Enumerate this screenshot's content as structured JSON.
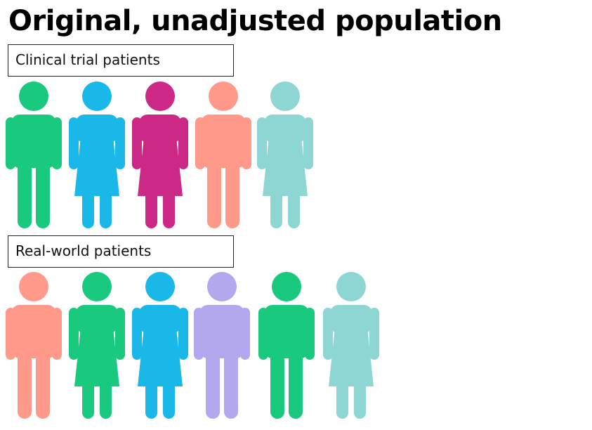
{
  "title": "Original, unadjusted population",
  "groups": [
    {
      "label": "Clinical trial patients",
      "people": [
        {
          "figure": "male-icon",
          "color": "#19C97D"
        },
        {
          "figure": "female-icon",
          "color": "#1AB8E8"
        },
        {
          "figure": "female-icon",
          "color": "#CC2987"
        },
        {
          "figure": "male-icon",
          "color": "#FF9A8B"
        },
        {
          "figure": "female-icon",
          "color": "#8DD6D4"
        }
      ]
    },
    {
      "label": "Real-world patients",
      "people": [
        {
          "figure": "male-icon",
          "color": "#FF9A8B"
        },
        {
          "figure": "female-icon",
          "color": "#19C97D"
        },
        {
          "figure": "female-icon",
          "color": "#1AB8E8"
        },
        {
          "figure": "male-icon",
          "color": "#B3A7EE"
        },
        {
          "figure": "male-icon",
          "color": "#19C97D"
        },
        {
          "figure": "female-icon",
          "color": "#8DD6D4"
        }
      ]
    }
  ]
}
